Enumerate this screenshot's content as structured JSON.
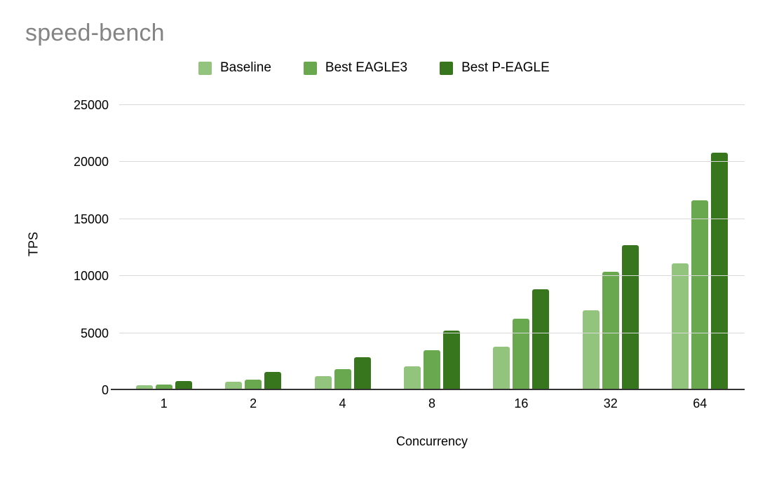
{
  "title": "speed-bench",
  "chart_data": {
    "type": "bar",
    "title": "speed-bench",
    "categories": [
      "1",
      "2",
      "4",
      "8",
      "16",
      "32",
      "64"
    ],
    "series": [
      {
        "name": "Baseline",
        "color": "#93c47d",
        "values": [
          450,
          750,
          1200,
          2100,
          3800,
          7000,
          11100
        ]
      },
      {
        "name": "Best EAGLE3",
        "color": "#6aa84f",
        "values": [
          500,
          900,
          1850,
          3500,
          6250,
          10400,
          16650
        ]
      },
      {
        "name": "Best P-EAGLE",
        "color": "#38761d",
        "values": [
          800,
          1600,
          2900,
          5200,
          8850,
          12700,
          20800
        ]
      }
    ],
    "xlabel": "Concurrency",
    "ylabel": "TPS",
    "ylim": [
      0,
      25000
    ],
    "yticks": [
      0,
      5000,
      10000,
      15000,
      20000,
      25000
    ],
    "grid": true,
    "legend_position": "top"
  },
  "colors": {
    "title_text": "#848484",
    "axis_line": "#333333",
    "gridline": "#d9d9d9",
    "label_text": "#000000",
    "background": "#ffffff"
  }
}
